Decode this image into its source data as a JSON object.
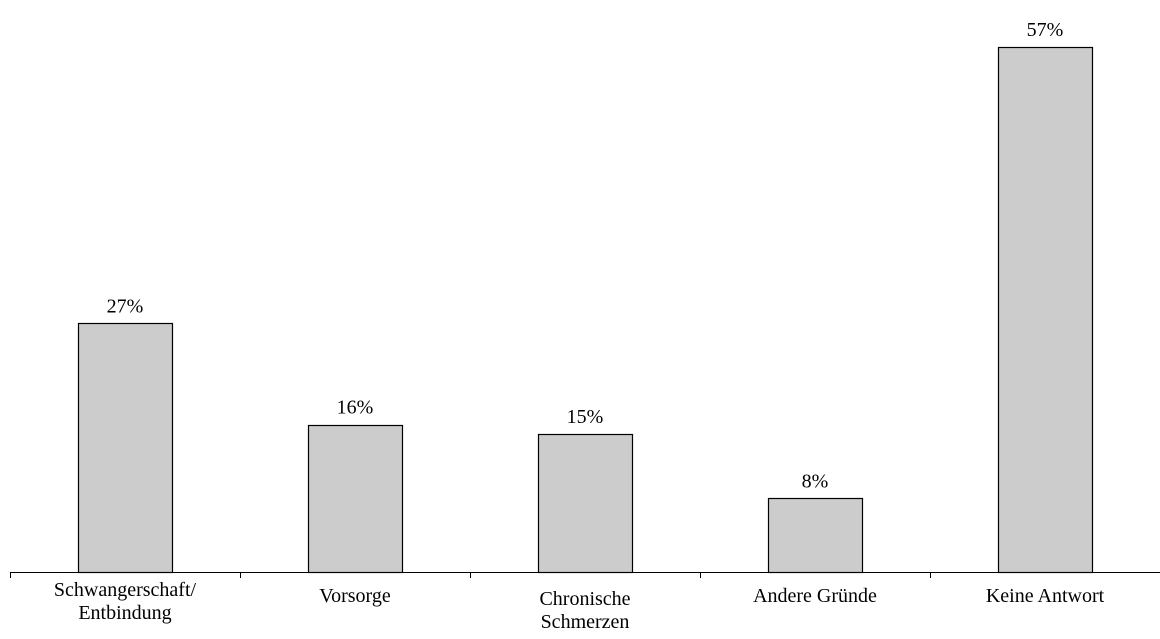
{
  "chart_data": {
    "type": "bar",
    "categories": [
      [
        "Schwangerschaft/",
        "Entbindung"
      ],
      [
        "Vorsorge"
      ],
      [
        "Chronische",
        "Schmerzen"
      ],
      [
        "Andere Gründe"
      ],
      [
        "Keine Antwort"
      ]
    ],
    "values": [
      27,
      16,
      15,
      8,
      57
    ],
    "value_labels": [
      "27%",
      "16%",
      "15%",
      "8%",
      "57%"
    ],
    "unit": "%",
    "ylim": [
      0,
      57
    ],
    "grid": false,
    "legend": "none",
    "colors": {
      "bar_fill": "#cccccc",
      "bar_stroke": "#000000",
      "axis": "#000000",
      "text": "#000000"
    }
  }
}
